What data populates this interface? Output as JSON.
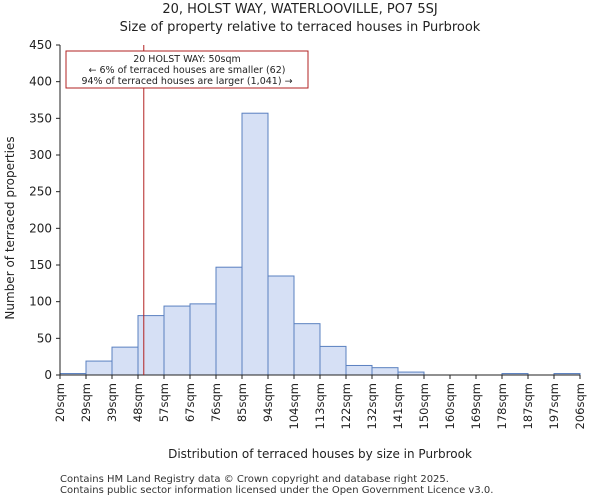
{
  "chart_data": {
    "type": "bar",
    "title": "20, HOLST WAY, WATERLOOVILLE, PO7 5SJ",
    "subtitle": "Size of property relative to terraced houses in Purbrook",
    "xlabel": "Distribution of terraced houses by size in Purbrook",
    "ylabel": "Number of terraced properties",
    "ylim": [
      0,
      450
    ],
    "yticks": [
      0,
      50,
      100,
      150,
      200,
      250,
      300,
      350,
      400,
      450
    ],
    "bin_edges_labels": [
      "20sqm",
      "29sqm",
      "39sqm",
      "48sqm",
      "57sqm",
      "67sqm",
      "76sqm",
      "85sqm",
      "94sqm",
      "104sqm",
      "113sqm",
      "122sqm",
      "132sqm",
      "141sqm",
      "150sqm",
      "160sqm",
      "169sqm",
      "178sqm",
      "187sqm",
      "197sqm",
      "206sqm"
    ],
    "values": [
      2,
      19,
      38,
      81,
      94,
      97,
      147,
      357,
      135,
      70,
      39,
      13,
      10,
      4,
      0,
      0,
      0,
      2,
      0,
      2
    ],
    "bar_color": "#d6e0f5",
    "bar_edge_color": "#5a80c0",
    "marker": {
      "value_sqm": 50,
      "color": "#b22222"
    },
    "annotation": {
      "line1": "20 HOLST WAY: 50sqm",
      "line2": "← 6% of terraced houses are smaller (62)",
      "line3": "94% of terraced houses are larger (1,041) →"
    }
  },
  "footer": {
    "line1": "Contains HM Land Registry data © Crown copyright and database right 2025.",
    "line2": "Contains public sector information licensed under the Open Government Licence v3.0."
  }
}
